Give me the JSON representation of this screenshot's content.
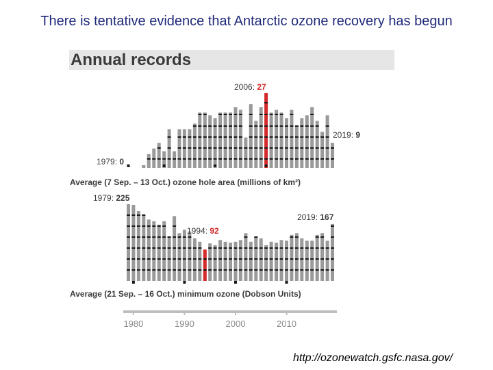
{
  "slide": {
    "title": "There is tentative evidence that Antarctic ozone recovery has begun",
    "source": "http://ozonewatch.gsfc.nasa.gov/"
  },
  "figure": {
    "header": "Annual records"
  },
  "colors": {
    "bar": "#9a9a9a",
    "highlight": "#d42a2a",
    "dot": "#1a1a1a",
    "axis": "#bdbdbd",
    "text": "#3a3a3a"
  },
  "chart_data": [
    {
      "type": "bar",
      "x": [
        1979,
        1980,
        1981,
        1982,
        1983,
        1984,
        1985,
        1986,
        1987,
        1988,
        1989,
        1990,
        1991,
        1992,
        1993,
        1994,
        1995,
        1996,
        1997,
        1998,
        1999,
        2000,
        2001,
        2002,
        2003,
        2004,
        2005,
        2006,
        2007,
        2008,
        2009,
        2010,
        2011,
        2012,
        2013,
        2014,
        2015,
        2016,
        2017,
        2018,
        2019
      ],
      "values": [
        0,
        0,
        0,
        1,
        5,
        7,
        9,
        6,
        14,
        6,
        14,
        14,
        14,
        16,
        20,
        20,
        19,
        18,
        20,
        20,
        20,
        22,
        21,
        11,
        23,
        17,
        22,
        27,
        20,
        21,
        20,
        18,
        21,
        15,
        18,
        19,
        22,
        17,
        13,
        19,
        9
      ],
      "highlight_year": 2006,
      "xlabel": "Average (7 Sep. – 13 Oct.) ozone hole area (millions of km²)",
      "annotations": [
        {
          "prefix": "1979: ",
          "value": "0",
          "red": false
        },
        {
          "prefix": "2006: ",
          "value": "27",
          "red": true
        },
        {
          "prefix": "2019: ",
          "value": "9",
          "red": false
        }
      ],
      "ylim": [
        0,
        27
      ]
    },
    {
      "type": "bar",
      "x": [
        1979,
        1980,
        1981,
        1982,
        1983,
        1984,
        1985,
        1986,
        1987,
        1988,
        1989,
        1990,
        1991,
        1992,
        1993,
        1994,
        1995,
        1996,
        1997,
        1998,
        1999,
        2000,
        2001,
        2002,
        2003,
        2004,
        2005,
        2006,
        2007,
        2008,
        2009,
        2010,
        2011,
        2012,
        2013,
        2014,
        2015,
        2016,
        2017,
        2018,
        2019
      ],
      "values": [
        225,
        223,
        205,
        195,
        180,
        175,
        165,
        175,
        130,
        190,
        140,
        150,
        145,
        125,
        115,
        92,
        110,
        105,
        120,
        115,
        112,
        115,
        120,
        140,
        115,
        130,
        125,
        105,
        115,
        112,
        120,
        118,
        135,
        140,
        125,
        118,
        118,
        135,
        140,
        118,
        167
      ],
      "highlight_year": 1994,
      "xlabel": "Average (21 Sep. – 16 Oct.) minimum ozone (Dobson Units)",
      "annotations": [
        {
          "prefix": "1979: ",
          "value": "225",
          "red": false
        },
        {
          "prefix": "1994: ",
          "value": "92",
          "red": true
        },
        {
          "prefix": "2019: ",
          "value": "167",
          "red": false
        }
      ],
      "ylim": [
        0,
        225
      ]
    }
  ],
  "axis": {
    "ticks": [
      "1980",
      "1990",
      "2000",
      "2010"
    ]
  }
}
